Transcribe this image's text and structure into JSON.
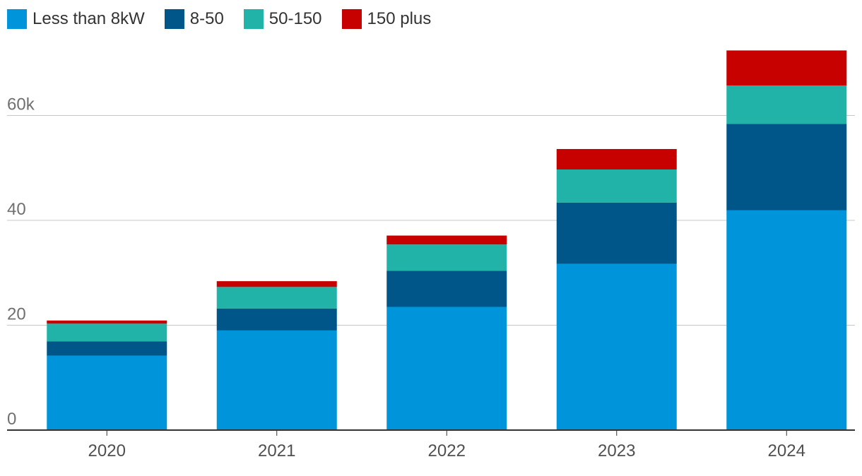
{
  "chart_data": {
    "type": "bar",
    "stacked": true,
    "categories": [
      "2020",
      "2021",
      "2022",
      "2023",
      "2024"
    ],
    "series": [
      {
        "name": "Less than 8kW",
        "color": "#0095da",
        "values": [
          14.2,
          19.0,
          23.5,
          31.7,
          41.9
        ]
      },
      {
        "name": "8-50",
        "color": "#005689",
        "values": [
          2.7,
          4.2,
          6.9,
          11.7,
          16.5
        ]
      },
      {
        "name": "50-150",
        "color": "#22b3a8",
        "values": [
          3.4,
          4.1,
          5.0,
          6.3,
          7.3
        ]
      },
      {
        "name": "150 plus",
        "color": "#c70000",
        "values": [
          0.6,
          1.1,
          1.7,
          3.9,
          6.7
        ]
      }
    ],
    "y_ticks": [
      {
        "value": 0,
        "label": "0"
      },
      {
        "value": 20,
        "label": "20"
      },
      {
        "value": 40,
        "label": "40"
      },
      {
        "value": 60,
        "label": "60k"
      }
    ],
    "ylim": [
      0,
      72.5
    ],
    "legend_position": "top-left",
    "grid": true
  }
}
